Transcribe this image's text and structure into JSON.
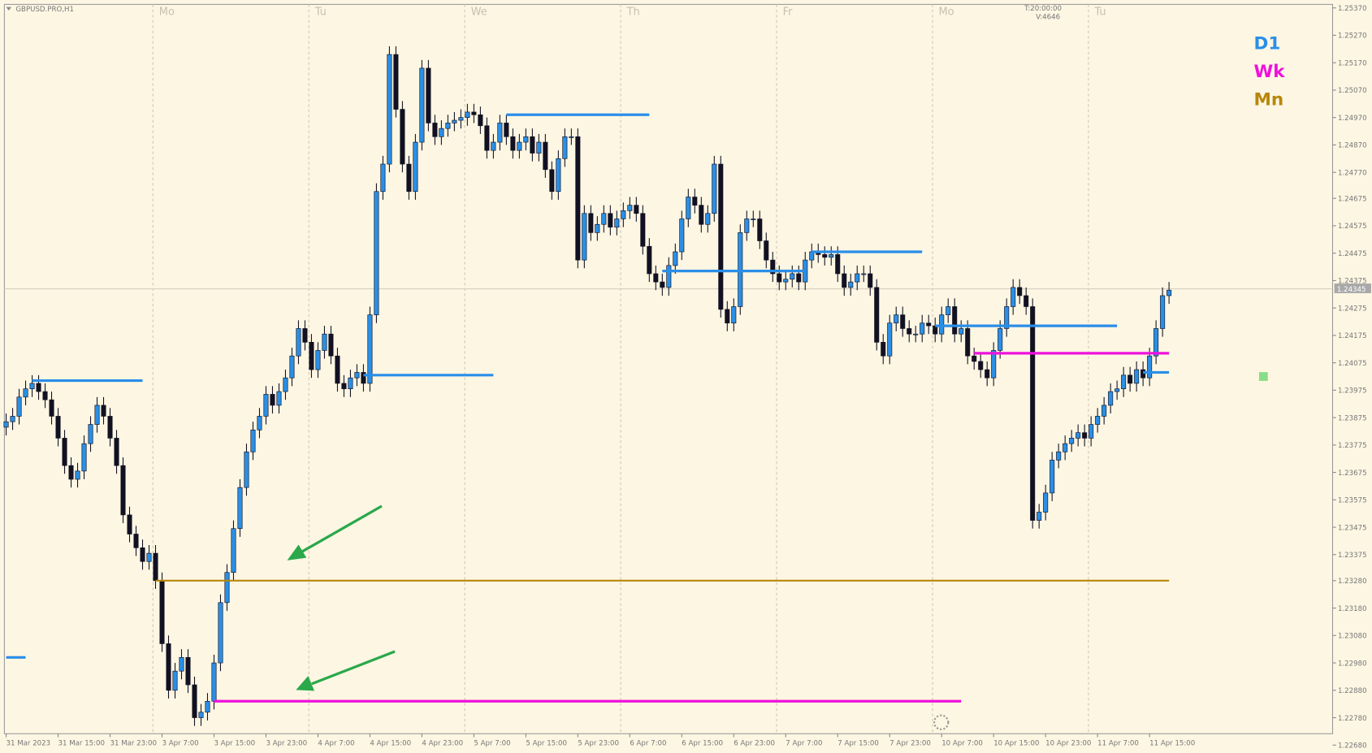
{
  "chart_data": {
    "type": "candlestick",
    "title": "GBPUSD.PRO,H1",
    "info": [
      "T:20:00:00",
      "V:4646"
    ],
    "days": [
      "Mo",
      "Tu",
      "We",
      "Th",
      "Fr",
      "Mo",
      "Tu"
    ],
    "time_labels": [
      "31 Mar 2023",
      "31 Mar 15:00",
      "31 Mar 23:00",
      "3 Apr 7:00",
      "3 Apr 15:00",
      "3 Apr 23:00",
      "4 Apr 7:00",
      "4 Apr 15:00",
      "4 Apr 23:00",
      "5 Apr 7:00",
      "5 Apr 15:00",
      "5 Apr 23:00",
      "6 Apr 7:00",
      "6 Apr 15:00",
      "6 Apr 23:00",
      "7 Apr 7:00",
      "7 Apr 15:00",
      "7 Apr 23:00",
      "10 Apr 7:00",
      "10 Apr 15:00",
      "10 Apr 23:00",
      "11 Apr 7:00",
      "11 Apr 15:00"
    ],
    "ylim": [
      1.2268,
      1.2537
    ],
    "yticks": [
      {
        "value": 1.2537,
        "label": "1.25370"
      },
      {
        "value": 1.2527,
        "label": "1.25270"
      },
      {
        "value": 1.2517,
        "label": "1.25170"
      },
      {
        "value": 1.2507,
        "label": "1.25070"
      },
      {
        "value": 1.2497,
        "label": "1.24970"
      },
      {
        "value": 1.2487,
        "label": "1.24870"
      },
      {
        "value": 1.2477,
        "label": "1.24770"
      },
      1.24675,
      1.24575,
      1.24475,
      1.24375,
      1.24275,
      1.24175,
      1.24075,
      1.23975,
      1.23875,
      1.23775,
      1.23675,
      1.23575,
      1.23475,
      1.23375,
      {
        "value": 1.2328,
        "label": "1.23280"
      },
      {
        "value": 1.2318,
        "label": "1.23180"
      },
      {
        "value": 1.2308,
        "label": "1.23080"
      },
      {
        "value": 1.2298,
        "label": "1.22980"
      },
      {
        "value": 1.2288,
        "label": "1.22880"
      },
      {
        "value": 1.2278,
        "label": "1.22780"
      },
      {
        "value": 1.2268,
        "label": "1.22680"
      }
    ],
    "current_price": 1.24345,
    "up_color": "#2a8fe6",
    "down_color": "#111122",
    "open": [
      1.2384,
      1.2386,
      1.2388,
      1.2395,
      1.2398,
      1.24,
      1.2397,
      1.2394,
      1.2388,
      1.238,
      1.237,
      1.2365,
      1.2368,
      1.2378,
      1.2385,
      1.2392,
      1.2388,
      1.238,
      1.237,
      1.2352,
      1.2345,
      1.234,
      1.2335,
      1.2338,
      1.2328,
      1.2305,
      1.2288,
      1.2295,
      1.23,
      1.229,
      1.2278,
      1.228,
      1.2284,
      1.2298,
      1.232,
      1.2331,
      1.2347,
      1.2362,
      1.2375,
      1.2383,
      1.2388,
      1.2396,
      1.2392,
      1.2397,
      1.2402,
      1.241,
      1.242,
      1.2415,
      1.2405,
      1.2412,
      1.2418,
      1.241,
      1.24,
      1.2398,
      1.2402,
      1.2404,
      1.24,
      1.2425,
      1.247,
      1.248,
      1.252,
      1.25,
      1.248,
      1.247,
      1.2488,
      1.2515,
      1.2495,
      1.249,
      1.2493,
      1.2495,
      1.2496,
      1.2497,
      1.2499,
      1.2498,
      1.2494,
      1.2485,
      1.2488,
      1.2495,
      1.249,
      1.2485,
      1.2488,
      1.249,
      1.2484,
      1.2488,
      1.2478,
      1.247,
      1.2482,
      1.249,
      1.249,
      1.2445,
      1.2462,
      1.2455,
      1.2458,
      1.2462,
      1.2457,
      1.246,
      1.2463,
      1.2465,
      1.2462,
      1.245,
      1.244,
      1.2437,
      1.2435,
      1.2443,
      1.2448,
      1.246,
      1.2468,
      1.2465,
      1.2458,
      1.2462,
      1.248,
      1.2427,
      1.2422,
      1.2428,
      1.2455,
      1.246,
      1.246,
      1.2452,
      1.2445,
      1.244,
      1.2437,
      1.2438,
      1.244,
      1.2437,
      1.2445,
      1.2448,
      1.2447,
      1.2446,
      1.2447,
      1.244,
      1.2435,
      1.2437,
      1.244,
      1.244,
      1.2435,
      1.2415,
      1.241,
      1.2422,
      1.2425,
      1.242,
      1.2418,
      1.2418,
      1.2422,
      1.2421,
      1.2418,
      1.2425,
      1.2428,
      1.2418,
      1.242,
      1.241,
      1.2408,
      1.2405,
      1.2402,
      1.2412,
      1.242,
      1.2428,
      1.2435,
      1.2432,
      1.2428,
      1.235,
      1.2353,
      1.236,
      1.2372,
      1.2375,
      1.2378,
      1.238,
      1.2382,
      1.238,
      1.2385,
      1.2388,
      1.2392,
      1.2397,
      1.2398,
      1.2403,
      1.24,
      1.2405,
      1.2402,
      1.241,
      1.242,
      1.2432
    ],
    "high": [
      1.2389,
      1.2391,
      1.2398,
      1.2401,
      1.2403,
      1.2403,
      1.24,
      1.2397,
      1.2391,
      1.2383,
      1.2373,
      1.2371,
      1.2381,
      1.2388,
      1.2395,
      1.2395,
      1.2391,
      1.2383,
      1.2373,
      1.2355,
      1.2348,
      1.2343,
      1.2341,
      1.2341,
      1.2331,
      1.2308,
      1.2298,
      1.2303,
      1.2303,
      1.2293,
      1.2283,
      1.2287,
      1.2301,
      1.2323,
      1.2334,
      1.235,
      1.2365,
      1.2378,
      1.2386,
      1.2391,
      1.2399,
      1.2399,
      1.24,
      1.2405,
      1.2413,
      1.2423,
      1.2423,
      1.2418,
      1.2415,
      1.2421,
      1.2421,
      1.2413,
      1.2403,
      1.2405,
      1.2407,
      1.2407,
      1.2428,
      1.2473,
      1.2483,
      1.2523,
      1.2523,
      1.2503,
      1.2483,
      1.2491,
      1.2518,
      1.2518,
      1.2498,
      1.2496,
      1.2498,
      1.2499,
      1.25,
      1.2502,
      1.2502,
      1.2501,
      1.2497,
      1.2491,
      1.2498,
      1.2498,
      1.2493,
      1.2491,
      1.2493,
      1.2493,
      1.2491,
      1.2491,
      1.2481,
      1.2485,
      1.2493,
      1.2493,
      1.2493,
      1.2465,
      1.2465,
      1.2461,
      1.2465,
      1.2465,
      1.2463,
      1.2466,
      1.2468,
      1.2468,
      1.2465,
      1.2453,
      1.2443,
      1.244,
      1.2446,
      1.2451,
      1.2463,
      1.2471,
      1.2471,
      1.2468,
      1.2465,
      1.2483,
      1.2483,
      1.243,
      1.2431,
      1.2458,
      1.2463,
      1.2463,
      1.2463,
      1.2455,
      1.2448,
      1.2443,
      1.2441,
      1.2443,
      1.2443,
      1.2448,
      1.2451,
      1.2451,
      1.245,
      1.245,
      1.245,
      1.2443,
      1.244,
      1.2443,
      1.2443,
      1.2443,
      1.2438,
      1.2418,
      1.2425,
      1.2428,
      1.2428,
      1.2423,
      1.2421,
      1.2425,
      1.2425,
      1.2424,
      1.2428,
      1.2431,
      1.2431,
      1.2423,
      1.2423,
      1.2413,
      1.2411,
      1.2408,
      1.2415,
      1.2423,
      1.2431,
      1.2438,
      1.2438,
      1.2435,
      1.2431,
      1.2356,
      1.2363,
      1.2375,
      1.2378,
      1.2381,
      1.2383,
      1.2385,
      1.2385,
      1.2388,
      1.2391,
      1.2395,
      1.24,
      1.2401,
      1.2406,
      1.2406,
      1.2408,
      1.2408,
      1.2413,
      1.2423,
      1.2435,
      1.2437
    ],
    "low": [
      1.2381,
      1.2383,
      1.2385,
      1.2392,
      1.2395,
      1.2394,
      1.2391,
      1.2385,
      1.2377,
      1.2367,
      1.2362,
      1.2362,
      1.2365,
      1.2375,
      1.2382,
      1.2385,
      1.2377,
      1.2367,
      1.2349,
      1.2342,
      1.2337,
      1.2332,
      1.2332,
      1.2325,
      1.2302,
      1.2285,
      1.2285,
      1.2292,
      1.2287,
      1.2275,
      1.2275,
      1.2277,
      1.2281,
      1.2295,
      1.2317,
      1.2328,
      1.2344,
      1.2359,
      1.2372,
      1.238,
      1.2385,
      1.2389,
      1.2389,
      1.2394,
      1.2399,
      1.2407,
      1.2412,
      1.2402,
      1.2402,
      1.2409,
      1.2407,
      1.2397,
      1.2395,
      1.2395,
      1.2399,
      1.2397,
      1.2397,
      1.2422,
      1.2467,
      1.2477,
      1.2497,
      1.2477,
      1.2467,
      1.2467,
      1.2485,
      1.2492,
      1.2487,
      1.2487,
      1.249,
      1.2492,
      1.2493,
      1.2494,
      1.2495,
      1.2491,
      1.2482,
      1.2482,
      1.2485,
      1.2487,
      1.2482,
      1.2482,
      1.2485,
      1.2481,
      1.2481,
      1.2475,
      1.2467,
      1.2467,
      1.2479,
      1.2487,
      1.2442,
      1.2442,
      1.2452,
      1.2452,
      1.2455,
      1.2454,
      1.2454,
      1.2457,
      1.246,
      1.2459,
      1.2447,
      1.2437,
      1.2434,
      1.2432,
      1.2432,
      1.244,
      1.2445,
      1.2457,
      1.2462,
      1.2455,
      1.2455,
      1.2459,
      1.2424,
      1.2419,
      1.2419,
      1.2425,
      1.2452,
      1.2457,
      1.2449,
      1.2442,
      1.2437,
      1.2434,
      1.2434,
      1.2435,
      1.2434,
      1.2434,
      1.2442,
      1.2444,
      1.2443,
      1.2443,
      1.2437,
      1.2432,
      1.2432,
      1.2434,
      1.2437,
      1.2432,
      1.2412,
      1.2407,
      1.2407,
      1.2419,
      1.2417,
      1.2415,
      1.2415,
      1.2415,
      1.2418,
      1.2415,
      1.2415,
      1.2422,
      1.2415,
      1.2415,
      1.2407,
      1.2405,
      1.2402,
      1.2399,
      1.2399,
      1.2409,
      1.2417,
      1.2425,
      1.2429,
      1.2425,
      1.2347,
      1.2347,
      1.235,
      1.2357,
      1.2369,
      1.2372,
      1.2375,
      1.2377,
      1.2377,
      1.2377,
      1.2382,
      1.2385,
      1.2389,
      1.2394,
      1.2395,
      1.2397,
      1.2397,
      1.2399,
      1.2399,
      1.2407,
      1.2417,
      1.2429
    ],
    "close": [
      1.2386,
      1.2388,
      1.2395,
      1.2398,
      1.24,
      1.2397,
      1.2394,
      1.2388,
      1.238,
      1.237,
      1.2365,
      1.2368,
      1.2378,
      1.2385,
      1.2392,
      1.2388,
      1.238,
      1.237,
      1.2352,
      1.2345,
      1.234,
      1.2335,
      1.2338,
      1.2328,
      1.2305,
      1.2288,
      1.2295,
      1.23,
      1.229,
      1.2278,
      1.228,
      1.2284,
      1.2298,
      1.232,
      1.2331,
      1.2347,
      1.2362,
      1.2375,
      1.2383,
      1.2388,
      1.2396,
      1.2392,
      1.2397,
      1.2402,
      1.241,
      1.242,
      1.2415,
      1.2405,
      1.2412,
      1.2418,
      1.241,
      1.24,
      1.2398,
      1.2402,
      1.2404,
      1.24,
      1.2425,
      1.247,
      1.248,
      1.252,
      1.25,
      1.248,
      1.247,
      1.2488,
      1.2515,
      1.2495,
      1.249,
      1.2493,
      1.2495,
      1.2496,
      1.2497,
      1.2499,
      1.2498,
      1.2494,
      1.2485,
      1.2488,
      1.2495,
      1.249,
      1.2485,
      1.2488,
      1.249,
      1.2484,
      1.2488,
      1.2478,
      1.247,
      1.2482,
      1.249,
      1.249,
      1.2445,
      1.2462,
      1.2455,
      1.2458,
      1.2462,
      1.2457,
      1.246,
      1.2463,
      1.2465,
      1.2462,
      1.245,
      1.244,
      1.2437,
      1.2435,
      1.2443,
      1.2448,
      1.246,
      1.2468,
      1.2465,
      1.2458,
      1.2462,
      1.248,
      1.2427,
      1.2422,
      1.2428,
      1.2455,
      1.246,
      1.246,
      1.2452,
      1.2445,
      1.244,
      1.2437,
      1.2438,
      1.244,
      1.2437,
      1.2445,
      1.2448,
      1.2447,
      1.2446,
      1.2447,
      1.244,
      1.2435,
      1.2437,
      1.244,
      1.244,
      1.2435,
      1.2415,
      1.241,
      1.2422,
      1.2425,
      1.242,
      1.2418,
      1.2418,
      1.2422,
      1.2421,
      1.2418,
      1.2425,
      1.2428,
      1.2418,
      1.242,
      1.241,
      1.2408,
      1.2405,
      1.2402,
      1.2412,
      1.242,
      1.2428,
      1.2435,
      1.2432,
      1.2428,
      1.235,
      1.2353,
      1.236,
      1.2372,
      1.2375,
      1.2378,
      1.238,
      1.2382,
      1.238,
      1.2385,
      1.2388,
      1.2392,
      1.2397,
      1.2398,
      1.2403,
      1.24,
      1.2405,
      1.2402,
      1.241,
      1.242,
      1.2432,
      1.2434
    ],
    "levels": [
      {
        "name": "D1",
        "color": "#2a8ee8",
        "lines": [
          {
            "value": 1.2401,
            "x": [
              4,
              21
            ]
          },
          {
            "value": 1.2403,
            "x": [
              55,
              75
            ]
          },
          {
            "value": 1.2498,
            "x": [
              77,
              99
            ]
          },
          {
            "value": 1.2441,
            "x": [
              101,
              123
            ]
          },
          {
            "value": 1.2448,
            "x": [
              124,
              141
            ]
          },
          {
            "value": 1.2421,
            "x": [
              143,
              171
            ]
          },
          {
            "value": 1.2404,
            "x": [
              175,
              179
            ]
          },
          {
            "value": 1.23,
            "x": [
              0,
              3
            ]
          }
        ]
      },
      {
        "name": "Wk",
        "color": "#ee11dd",
        "lines": [
          {
            "value": 1.2284,
            "x": [
              32,
              147
            ]
          },
          {
            "value": 1.2411,
            "x": [
              149,
              179
            ]
          }
        ]
      },
      {
        "name": "Mn",
        "color": "#b8860b",
        "lines": [
          {
            "value": 1.2328,
            "x": [
              23,
              179
            ]
          }
        ]
      }
    ]
  }
}
